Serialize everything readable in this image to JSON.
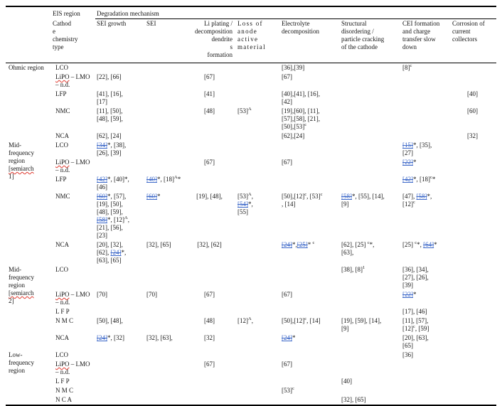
{
  "colors": {
    "background": "#ffffff",
    "text": "#141414",
    "reference_link_blue": "#3a66c8",
    "spellcheck_red": "#e03a2f",
    "table_rule_black": "#000000"
  },
  "table": {
    "top_headers": {
      "eis_region": "EIS region",
      "degradation": "Degradation mechanism"
    },
    "cathode_header": "Cathod\ne\nchemistry\ntype",
    "mechanisms": [
      {
        "key": "sei-growth",
        "label": "SEI growth",
        "header_align": "left",
        "cell_align": "left",
        "letter_spaced": false
      },
      {
        "key": "sei",
        "label": "SEI",
        "header_align": "left",
        "cell_align": "left",
        "letter_spaced": false
      },
      {
        "key": "li-plating",
        "label": "Li plating /\ndecomposition\ndendrite\ns\nformation",
        "header_align": "right",
        "cell_align": "center",
        "letter_spaced": false
      },
      {
        "key": "loss-anode",
        "label": "Loss of\nanode\nactive\nmaterial",
        "header_align": "left",
        "cell_align": "left",
        "letter_spaced": true
      },
      {
        "key": "electrolyte",
        "label": "Electrolyte\ndecomposition",
        "header_align": "left",
        "cell_align": "left",
        "letter_spaced": false
      },
      {
        "key": "structural",
        "label": "Structural\ndisordering /\nparticle cracking\nof the cathode",
        "header_align": "left",
        "cell_align": "left",
        "letter_spaced": false
      },
      {
        "key": "cei",
        "label": "CEI formation\nand charge\ntransfer slow\ndown",
        "header_align": "left",
        "cell_align": "left",
        "letter_spaced": false
      },
      {
        "key": "corrosion",
        "label": "Corrosion of\ncurrent\ncollectors",
        "header_align": "left",
        "cell_align": "center",
        "letter_spaced": false
      }
    ],
    "sections": [
      {
        "region": "Ohmic region",
        "rows": [
          {
            "cathode": "LCO",
            "cells": [
              "",
              "",
              "",
              "",
              "[36],[39]",
              "",
              "[8]^{c}",
              ""
            ]
          },
          {
            "cathode": "%LiPO% – LMO\n– n.d.",
            "cells": [
              "[22], [66]",
              "",
              "[67]",
              "",
              "[67]",
              "",
              "",
              ""
            ]
          },
          {
            "cathode": "LFP",
            "cells": [
              "[41], [16],\n[17]",
              "",
              "[41]",
              "",
              "[40],[41], [16],\n[42]",
              "",
              "",
              "[40]"
            ]
          },
          {
            "cathode": "NMC",
            "cells": [
              "[11], [50],\n[48], [59],",
              "",
              "[48]",
              "[53]^{A}",
              "[19],[60], [11],\n[57],[58], [21],\n[50],[53]^{c}",
              "",
              "",
              "[60]"
            ]
          },
          {
            "cathode": "NCA",
            "cells": [
              "[62], [24]",
              "",
              "",
              "",
              "[62],[24]",
              "",
              "",
              "[32]"
            ]
          }
        ]
      },
      {
        "region": "Mid-\nfrequency\nregion\n%[semiarch%\n1]",
        "rows": [
          {
            "cathode": "LCO",
            "cells": [
              "~[34]~*, [38],\n[26], [39]",
              "",
              "",
              "",
              "",
              "",
              "~[15]~*, [35],\n[27]",
              ""
            ]
          },
          {
            "cathode": "%LiPO% – LMO\n– n.d.",
            "cells": [
              "",
              "",
              "[67]",
              "",
              "[67]",
              "",
              "~[22]~*",
              ""
            ]
          },
          {
            "cathode": "LFP",
            "cells": [
              "~[42]~*, [40]*,\n[46]",
              "~[40]~*, [18]^{A}*",
              "",
              "",
              "",
              "",
              "~[42]~*, [18]^{c}*",
              ""
            ]
          },
          {
            "cathode": "NMC",
            "cells": [
              "~[60]~*, [57],\n[19], [50],\n[48], [59],\n~[58]~*, [12]^{A},\n[21], [56],\n[23]",
              "~[60]~*",
              "[19], [48],",
              "[53]^{A},\n~[54]~*,\n[55]",
              "[50],[12]^{c}, [53]^{c}\n, [14]",
              "~[58]~*, [55], [14],\n[9]",
              "[47], ~[58]~*,\n[12]^{c}",
              ""
            ]
          },
          {
            "cathode": "NCA",
            "cells": [
              "[20], [32],\n[62], ~[24]~*,\n[63], [65]",
              "[32], [65]",
              "[32], [62]",
              "",
              "~[24]~*,~[25]~* ^{c}",
              "[62], [25] ^{c}*,\n[63],",
              "[25] ^{c}*, ~[64]~*",
              ""
            ]
          }
        ]
      },
      {
        "region": "Mid-\nfrequency\nregion\n%[semiarch%\n2]",
        "rows": [
          {
            "cathode": "LCO",
            "cells": [
              "",
              "",
              "",
              "",
              "",
              "[38], [8]^{1}",
              "[36], [34],\n[27], [26],\n[39]",
              ""
            ]
          },
          {
            "cathode": "%LiPO% – LMO\n– n.d.",
            "cells": [
              "[70]",
              "[70]",
              "[67]",
              "",
              "[67]",
              "",
              "~[22]~*",
              ""
            ]
          },
          {
            "cathode": "L F P",
            "cells": [
              "",
              "",
              "",
              "",
              "",
              "",
              "[17], [46]",
              ""
            ]
          },
          {
            "cathode": "N M C",
            "cells": [
              "[50], [48],",
              "",
              "[48]",
              "[12]^{A},",
              "[50],[12]^{c}, [14]",
              "[19], [59], [14],\n[9]",
              "[11], [57],\n[12]^{c}, [59]",
              ""
            ]
          },
          {
            "cathode": "NCA",
            "cells": [
              "~[24]~*, [32]",
              "[32], [63],",
              "[32]",
              "",
              "~[24]~*",
              "",
              "[20], [63],\n[65]",
              ""
            ]
          }
        ]
      },
      {
        "region": "Low-\nfrequency\nregion",
        "rows": [
          {
            "cathode": "LCO",
            "cells": [
              "",
              "",
              "",
              "",
              "",
              "",
              "[36]",
              ""
            ]
          },
          {
            "cathode": "%LiPO% – LMO\n– n.d.",
            "cells": [
              "",
              "",
              "[67]",
              "",
              "[67]",
              "",
              "",
              ""
            ]
          },
          {
            "cathode": "L F P",
            "cells": [
              "",
              "",
              "",
              "",
              "",
              "[40]",
              "",
              ""
            ]
          },
          {
            "cathode": "N M C",
            "cells": [
              "",
              "",
              "",
              "",
              "[53]^{c}",
              "",
              "",
              ""
            ]
          },
          {
            "cathode": "N C A",
            "cells": [
              "",
              "",
              "",
              "",
              "",
              "[32], [65]",
              "",
              ""
            ]
          }
        ]
      }
    ]
  }
}
